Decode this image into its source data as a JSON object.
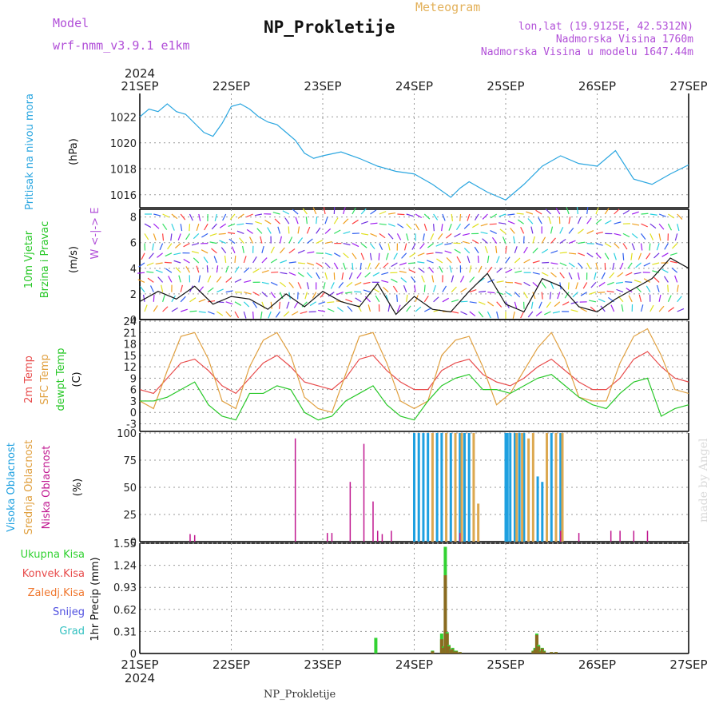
{
  "header": {
    "model_label": "Model",
    "model_name": "wrf-nmm_v3.9.1  e1km",
    "meteogram": "Meteogram",
    "title": "NP_Prokletije",
    "lonlat": "lon,lat (19.9125E, 42.5312N)",
    "altitude": "Nadmorska Visina 1760m",
    "model_altitude": "Nadmorska Visina u modelu 1647.44m",
    "year": "2024",
    "footer": "NP_Prokletije",
    "watermark": "made by Angel"
  },
  "colors": {
    "pressure": "#2aa6e0",
    "temp2m": "#e84c4c",
    "sfc": "#e0a040",
    "dewpt": "#28c828",
    "cloud_high": "#1ea0e0",
    "cloud_mid": "#dca850",
    "cloud_low": "#c01890",
    "precip_total": "#32d232",
    "precip_conv": "#8a6a20"
  },
  "chart_data": [
    {
      "type": "line",
      "panel": "pressure",
      "ylabel": "Pritisak na nivou mora",
      "unit": "(hPa)",
      "ylim": [
        1015,
        1023.8
      ],
      "yticks": [
        1016,
        1018,
        1020,
        1022
      ],
      "x_categories": [
        "21SEP",
        "22SEP",
        "23SEP",
        "24SEP",
        "25SEP",
        "26SEP",
        "27SEP"
      ],
      "x": [
        0,
        0.1,
        0.2,
        0.3,
        0.4,
        0.5,
        0.6,
        0.7,
        0.8,
        0.9,
        1.0,
        1.1,
        1.2,
        1.3,
        1.4,
        1.5,
        1.6,
        1.7,
        1.8,
        1.9,
        2.0,
        2.2,
        2.4,
        2.6,
        2.8,
        3.0,
        3.2,
        3.4,
        3.5,
        3.6,
        3.8,
        4.0,
        4.2,
        4.4,
        4.6,
        4.8,
        5.0,
        5.2,
        5.4,
        5.6,
        5.8,
        6.0
      ],
      "values": [
        1022,
        1022.6,
        1022.4,
        1023,
        1022.4,
        1022.2,
        1021.5,
        1020.8,
        1020.5,
        1021.5,
        1022.8,
        1023,
        1022.6,
        1022,
        1021.6,
        1021.4,
        1020.8,
        1020.2,
        1019.2,
        1018.8,
        1019,
        1019.3,
        1018.8,
        1018.2,
        1017.8,
        1017.6,
        1016.8,
        1015.8,
        1016.5,
        1017.0,
        1016.2,
        1015.6,
        1016.8,
        1018.2,
        1019,
        1018.4,
        1018.2,
        1019.4,
        1017.2,
        1016.8,
        1017.6,
        1018.3
      ]
    },
    {
      "type": "line",
      "panel": "wind",
      "ylabel": "10m Vjetar Brzina i Pravac",
      "unit": "(m/s)",
      "compass": "W <-|-> E",
      "ylim": [
        0,
        8.6
      ],
      "yticks": [
        0,
        2,
        4,
        6,
        8
      ],
      "x": [
        0,
        0.2,
        0.4,
        0.6,
        0.8,
        1.0,
        1.2,
        1.4,
        1.6,
        1.8,
        2.0,
        2.2,
        2.4,
        2.6,
        2.8,
        3.0,
        3.2,
        3.4,
        3.6,
        3.8,
        4.0,
        4.2,
        4.4,
        4.6,
        4.8,
        5.0,
        5.2,
        5.4,
        5.6,
        5.8,
        6.0
      ],
      "values": [
        1.4,
        2.2,
        1.6,
        2.6,
        1.2,
        1.8,
        1.6,
        0.8,
        2.0,
        1.0,
        2.2,
        1.4,
        1.0,
        2.8,
        0.4,
        1.8,
        0.8,
        0.6,
        2.2,
        3.6,
        1.2,
        0.6,
        3.2,
        2.6,
        1.0,
        0.6,
        1.6,
        2.4,
        3.2,
        4.8,
        4.0
      ]
    },
    {
      "type": "line",
      "panel": "temperature",
      "ylabel": "2m Temp",
      "ylabel2": "SFC Temp",
      "ylabel3": "dewpt Temp",
      "unit": "(C)",
      "ylim": [
        -5,
        24
      ],
      "yticks": [
        -3,
        0,
        3,
        6,
        9,
        12,
        15,
        18,
        21,
        24
      ],
      "x": [
        0,
        0.15,
        0.3,
        0.45,
        0.6,
        0.75,
        0.9,
        1.05,
        1.2,
        1.35,
        1.5,
        1.65,
        1.8,
        1.95,
        2.1,
        2.25,
        2.4,
        2.55,
        2.7,
        2.85,
        3.0,
        3.15,
        3.3,
        3.45,
        3.6,
        3.75,
        3.9,
        4.05,
        4.2,
        4.35,
        4.5,
        4.65,
        4.8,
        4.95,
        5.1,
        5.25,
        5.4,
        5.55,
        5.7,
        5.85,
        6.0
      ],
      "series": [
        {
          "name": "2m Temp",
          "values": [
            6,
            5,
            9,
            13,
            14,
            11,
            7,
            5,
            9,
            13,
            15,
            12,
            8,
            7,
            6,
            9,
            14,
            15,
            11,
            8,
            6,
            6,
            11,
            13,
            14,
            10,
            8,
            7,
            9,
            12,
            14,
            11,
            8,
            6,
            6,
            9,
            14,
            16,
            12,
            9,
            8
          ]
        },
        {
          "name": "SFC Temp",
          "values": [
            3,
            1,
            11,
            20,
            21,
            14,
            3,
            1,
            12,
            19,
            21,
            15,
            4,
            1,
            0,
            10,
            20,
            21,
            13,
            3,
            1,
            3,
            15,
            19,
            20,
            12,
            2,
            5,
            11,
            17,
            21,
            14,
            4,
            3,
            3,
            13,
            20,
            22,
            15,
            6,
            5
          ]
        },
        {
          "name": "dewpt Temp",
          "values": [
            3,
            3,
            4,
            6,
            8,
            2,
            -1,
            -2,
            5,
            5,
            7,
            6,
            0,
            -2,
            -1,
            3,
            5,
            7,
            2,
            -1,
            -2,
            3,
            7,
            9,
            10,
            6,
            6,
            5,
            7,
            9,
            10,
            7,
            4,
            2,
            1,
            5,
            8,
            9,
            -1,
            1,
            2
          ]
        }
      ]
    },
    {
      "type": "bar",
      "panel": "clouds",
      "ylabel": "Visoka Oblacnost",
      "ylabel2": "Srednja Oblacnost",
      "ylabel3": "Niska Oblacnost",
      "unit": "(%)",
      "ylim": [
        0,
        100
      ],
      "yticks": [
        0,
        25,
        50,
        75,
        100
      ],
      "series": [
        {
          "name": "Visoka",
          "x": [
            3.0,
            3.05,
            3.1,
            3.15,
            3.25,
            3.3,
            3.4,
            3.5,
            3.55,
            3.6,
            4.0,
            4.02,
            4.05,
            4.1,
            4.15,
            4.2,
            4.35,
            4.4,
            4.5,
            4.6
          ],
          "values": [
            100,
            100,
            100,
            100,
            100,
            100,
            100,
            100,
            100,
            100,
            100,
            100,
            100,
            100,
            100,
            100,
            60,
            55,
            100,
            100
          ]
        },
        {
          "name": "Srednja",
          "x": [
            3.2,
            3.35,
            3.45,
            3.52,
            3.65,
            3.7,
            4.12,
            4.18,
            4.25,
            4.3,
            4.45,
            4.55,
            4.62
          ],
          "values": [
            100,
            100,
            100,
            100,
            100,
            35,
            100,
            100,
            95,
            100,
            100,
            100,
            100
          ]
        },
        {
          "name": "Niska",
          "x": [
            0.55,
            0.6,
            1.7,
            2.05,
            2.1,
            2.3,
            2.45,
            2.55,
            2.6,
            2.65,
            2.75,
            3.5,
            4.6,
            4.8,
            5.15,
            5.25,
            5.4,
            5.55
          ],
          "values": [
            7,
            6,
            95,
            8,
            8,
            55,
            90,
            37,
            10,
            7,
            10,
            8,
            10,
            8,
            10,
            10,
            10,
            10
          ]
        }
      ]
    },
    {
      "type": "bar",
      "panel": "precip",
      "ylabel": "1hr Precip",
      "unit": "(mm)",
      "legend": [
        "Ukupna Kisa",
        "Konvek.Kisa",
        "Zaledj.Kisa",
        "Snijeg",
        "Grad"
      ],
      "legend_colors": [
        "#32d232",
        "#e84c4c",
        "#f07830",
        "#5050e0",
        "#30c0c0"
      ],
      "ylim": [
        0,
        1.55
      ],
      "yticks": [
        0,
        0.31,
        0.62,
        0.93,
        1.24,
        1.55
      ],
      "ytick_labels": [
        "0",
        "0.31",
        "0.62",
        "0.93",
        "1.24",
        "1.55"
      ],
      "x": [
        2.58,
        3.2,
        3.3,
        3.32,
        3.34,
        3.36,
        3.38,
        3.4,
        3.42,
        3.44,
        3.46,
        3.5,
        4.3,
        4.32,
        4.34,
        4.36,
        4.38,
        4.4,
        4.42,
        4.5,
        4.55
      ],
      "total": [
        0.22,
        0.04,
        0.28,
        0.1,
        1.5,
        0.3,
        0.12,
        0.06,
        0.08,
        0.04,
        0.04,
        0.02,
        0.04,
        0.08,
        0.28,
        0.12,
        0.04,
        0.08,
        0.04,
        0.02,
        0.02
      ],
      "convective": [
        0,
        0.03,
        0.2,
        0.08,
        1.1,
        0.28,
        0.1,
        0.05,
        0.06,
        0.03,
        0.03,
        0.02,
        0.03,
        0.06,
        0.26,
        0.1,
        0.03,
        0.07,
        0.03,
        0.02,
        0.02
      ]
    }
  ]
}
